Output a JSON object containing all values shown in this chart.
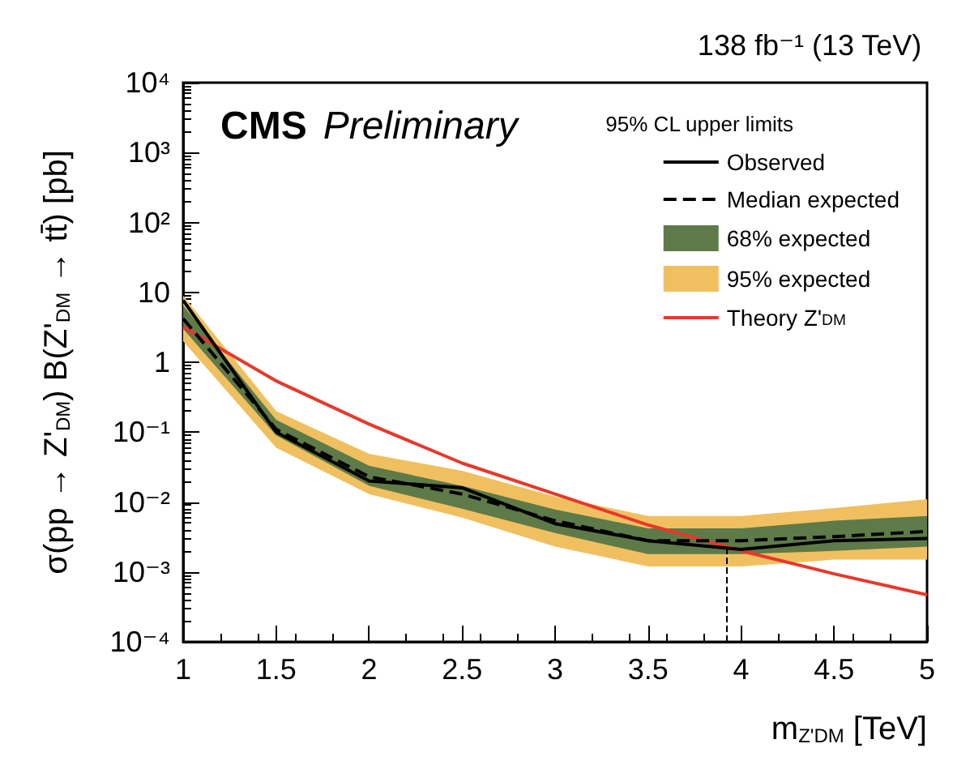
{
  "chart_data": {
    "type": "line",
    "title": "138 fb⁻¹ (13 TeV)",
    "xlabel": "m$_{Z'DM}$ [TeV]",
    "ylabel": "σ(pp → Z'$_{DM}$) B(Z'$_{DM}$ → tt̄) [pb]",
    "legend_title": "95% CL upper limits",
    "annotations": [
      "CMS Preliminary"
    ],
    "x": [
      1,
      1.5,
      2,
      2.5,
      3,
      3.5,
      4,
      4.5,
      5
    ],
    "series": [
      {
        "name": "95% expected",
        "type": "area",
        "color": "#f0c060",
        "values": [
          null,
          null,
          null,
          null,
          null,
          null,
          null,
          null,
          null
        ],
        "lower": [
          2,
          0.06,
          0.013,
          0.006,
          0.0023,
          0.0012,
          0.0012,
          0.0015,
          0.0015
        ],
        "upper": [
          9,
          0.2,
          0.049,
          0.028,
          0.012,
          0.0063,
          0.0063,
          0.0082,
          0.011
        ]
      },
      {
        "name": "68% expected",
        "type": "area",
        "color": "#5e7a48",
        "values": [
          null,
          null,
          null,
          null,
          null,
          null,
          null,
          null,
          null
        ],
        "lower": [
          3,
          0.09,
          0.017,
          0.008,
          0.0036,
          0.0018,
          0.0018,
          0.002,
          0.0023
        ],
        "upper": [
          6.5,
          0.15,
          0.033,
          0.017,
          0.0078,
          0.0042,
          0.0042,
          0.0054,
          0.0063
        ]
      },
      {
        "name": "Theory Z'$_{DM}$",
        "color": "#e8382a",
        "line_style": "solid",
        "values": [
          3.2,
          0.54,
          0.13,
          0.036,
          0.013,
          0.0047,
          0.002,
          0.00094,
          0.00047
        ]
      },
      {
        "name": "Median expected",
        "color": "#000000",
        "line_style": "dashed",
        "values": [
          4.2,
          0.11,
          0.023,
          0.013,
          0.0054,
          0.0028,
          0.0028,
          0.0032,
          0.0038
        ]
      },
      {
        "name": "Observed",
        "color": "#000000",
        "line_style": "solid",
        "values": [
          7.7,
          0.1,
          0.02,
          0.016,
          0.0049,
          0.0028,
          0.0021,
          0.0028,
          0.003
        ]
      }
    ],
    "ref_lines": [
      {
        "axis": "x",
        "value": 3.92,
        "color": "#000000",
        "line_style": "dashed"
      }
    ],
    "log": "y",
    "marker": "none",
    "grid": false,
    "legend": "top right",
    "xlim": [
      1,
      5
    ],
    "xticks": [
      1,
      1.5,
      2,
      2.5,
      3,
      3.5,
      4,
      4.5,
      5
    ],
    "ylim": [
      0.0001,
      10000
    ],
    "yticks": [
      {
        "value": 0.0001,
        "label": "10⁻⁴"
      },
      {
        "value": 0.001,
        "label": "10⁻³"
      },
      {
        "value": 0.01,
        "label": "10⁻²"
      },
      {
        "value": 0.1,
        "label": "10⁻¹"
      },
      1,
      10,
      {
        "value": 100,
        "label": "10²"
      },
      {
        "value": 1000,
        "label": "10³"
      },
      {
        "value": 10000,
        "label": "10⁴"
      }
    ]
  }
}
